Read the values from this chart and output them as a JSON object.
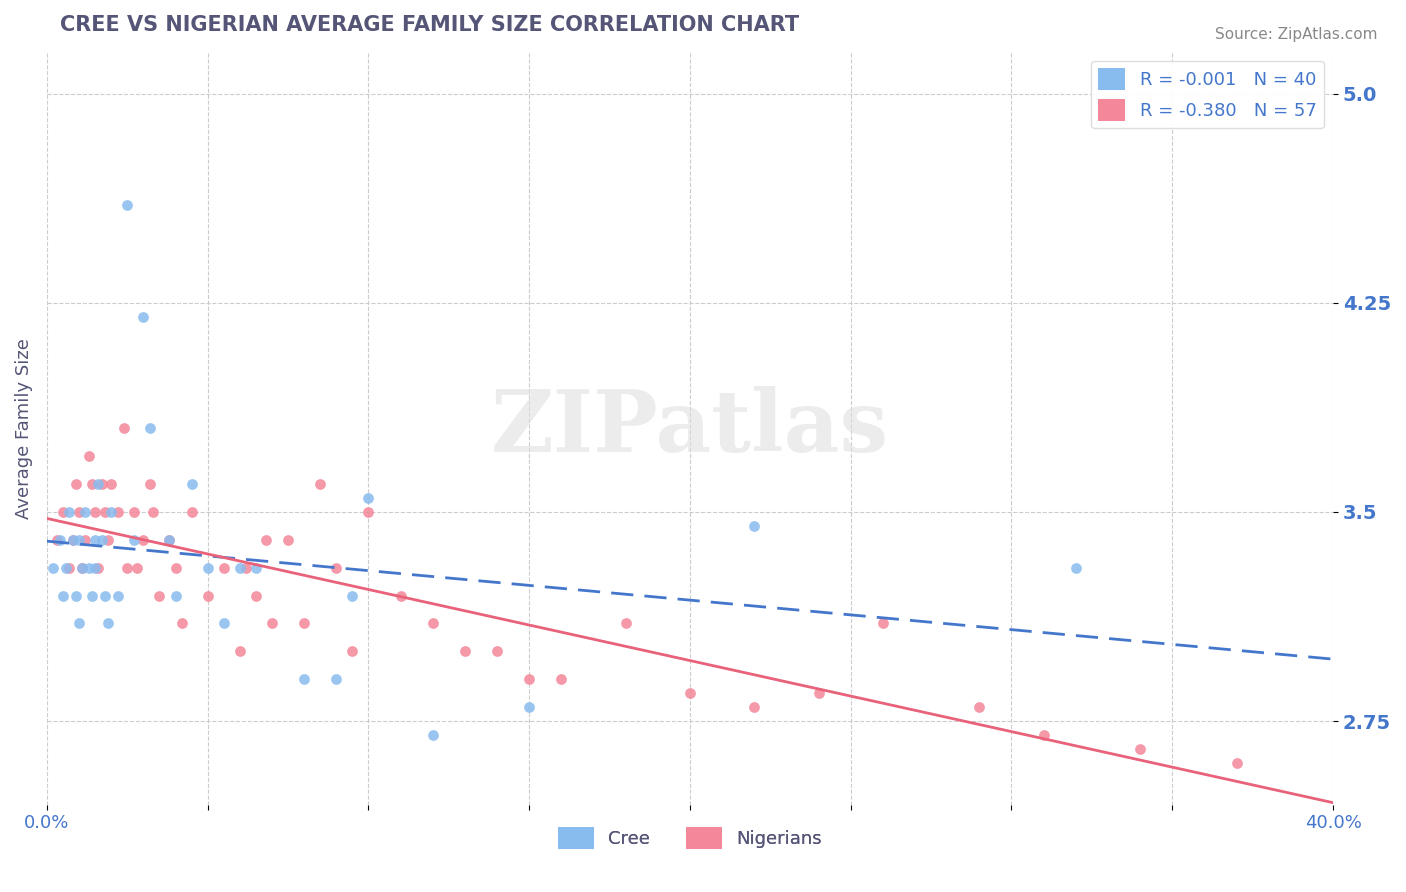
{
  "title": "CREE VS NIGERIAN AVERAGE FAMILY SIZE CORRELATION CHART",
  "source_text": "Source: ZipAtlas.com",
  "xlabel": "",
  "ylabel": "Average Family Size",
  "xlim": [
    0.0,
    0.4
  ],
  "ylim": [
    2.45,
    5.15
  ],
  "yticks": [
    2.75,
    3.5,
    4.25,
    5.0
  ],
  "xticks": [
    0.0,
    0.05,
    0.1,
    0.15,
    0.2,
    0.25,
    0.3,
    0.35,
    0.4
  ],
  "xtick_labels": [
    "0.0%",
    "",
    "",
    "",
    "",
    "",
    "",
    "",
    "40.0%"
  ],
  "cree_color": "#88BBEE",
  "nigerian_color": "#F4879A",
  "cree_line_color": "#4477CC",
  "nigerian_line_color": "#E8637A",
  "cree_R": -0.001,
  "cree_N": 40,
  "nigerian_R": -0.38,
  "nigerian_N": 57,
  "background_color": "#FFFFFF",
  "grid_color": "#CCCCCC",
  "title_color": "#555577",
  "axis_label_color": "#555577",
  "tick_label_color": "#4477CC",
  "watermark_text": "ZIPatlas",
  "cree_x": [
    0.002,
    0.004,
    0.005,
    0.006,
    0.007,
    0.008,
    0.009,
    0.01,
    0.01,
    0.011,
    0.012,
    0.013,
    0.014,
    0.015,
    0.015,
    0.016,
    0.017,
    0.018,
    0.019,
    0.02,
    0.022,
    0.025,
    0.027,
    0.03,
    0.032,
    0.038,
    0.04,
    0.045,
    0.05,
    0.055,
    0.06,
    0.065,
    0.08,
    0.09,
    0.095,
    0.1,
    0.12,
    0.15,
    0.22,
    0.32
  ],
  "cree_y": [
    3.3,
    3.4,
    3.2,
    3.3,
    3.5,
    3.4,
    3.2,
    3.1,
    3.4,
    3.3,
    3.5,
    3.3,
    3.2,
    3.4,
    3.3,
    3.6,
    3.4,
    3.2,
    3.1,
    3.5,
    3.2,
    4.6,
    3.4,
    4.2,
    3.8,
    3.4,
    3.2,
    3.6,
    3.3,
    3.1,
    3.3,
    3.3,
    2.9,
    2.9,
    3.2,
    3.55,
    2.7,
    2.8,
    3.45,
    3.3
  ],
  "nigerian_x": [
    0.003,
    0.005,
    0.007,
    0.008,
    0.009,
    0.01,
    0.011,
    0.012,
    0.013,
    0.014,
    0.015,
    0.016,
    0.017,
    0.018,
    0.019,
    0.02,
    0.022,
    0.024,
    0.025,
    0.027,
    0.028,
    0.03,
    0.032,
    0.033,
    0.035,
    0.038,
    0.04,
    0.042,
    0.045,
    0.05,
    0.055,
    0.06,
    0.062,
    0.065,
    0.068,
    0.07,
    0.075,
    0.08,
    0.085,
    0.09,
    0.095,
    0.1,
    0.11,
    0.12,
    0.13,
    0.14,
    0.15,
    0.16,
    0.18,
    0.2,
    0.22,
    0.24,
    0.26,
    0.29,
    0.31,
    0.34,
    0.37
  ],
  "nigerian_y": [
    3.4,
    3.5,
    3.3,
    3.4,
    3.6,
    3.5,
    3.3,
    3.4,
    3.7,
    3.6,
    3.5,
    3.3,
    3.6,
    3.5,
    3.4,
    3.6,
    3.5,
    3.8,
    3.3,
    3.5,
    3.3,
    3.4,
    3.6,
    3.5,
    3.2,
    3.4,
    3.3,
    3.1,
    3.5,
    3.2,
    3.3,
    3.0,
    3.3,
    3.2,
    3.4,
    3.1,
    3.4,
    3.1,
    3.6,
    3.3,
    3.0,
    3.5,
    3.2,
    3.1,
    3.0,
    3.0,
    2.9,
    2.9,
    3.1,
    2.85,
    2.8,
    2.85,
    3.1,
    2.8,
    2.7,
    2.65,
    2.6
  ]
}
